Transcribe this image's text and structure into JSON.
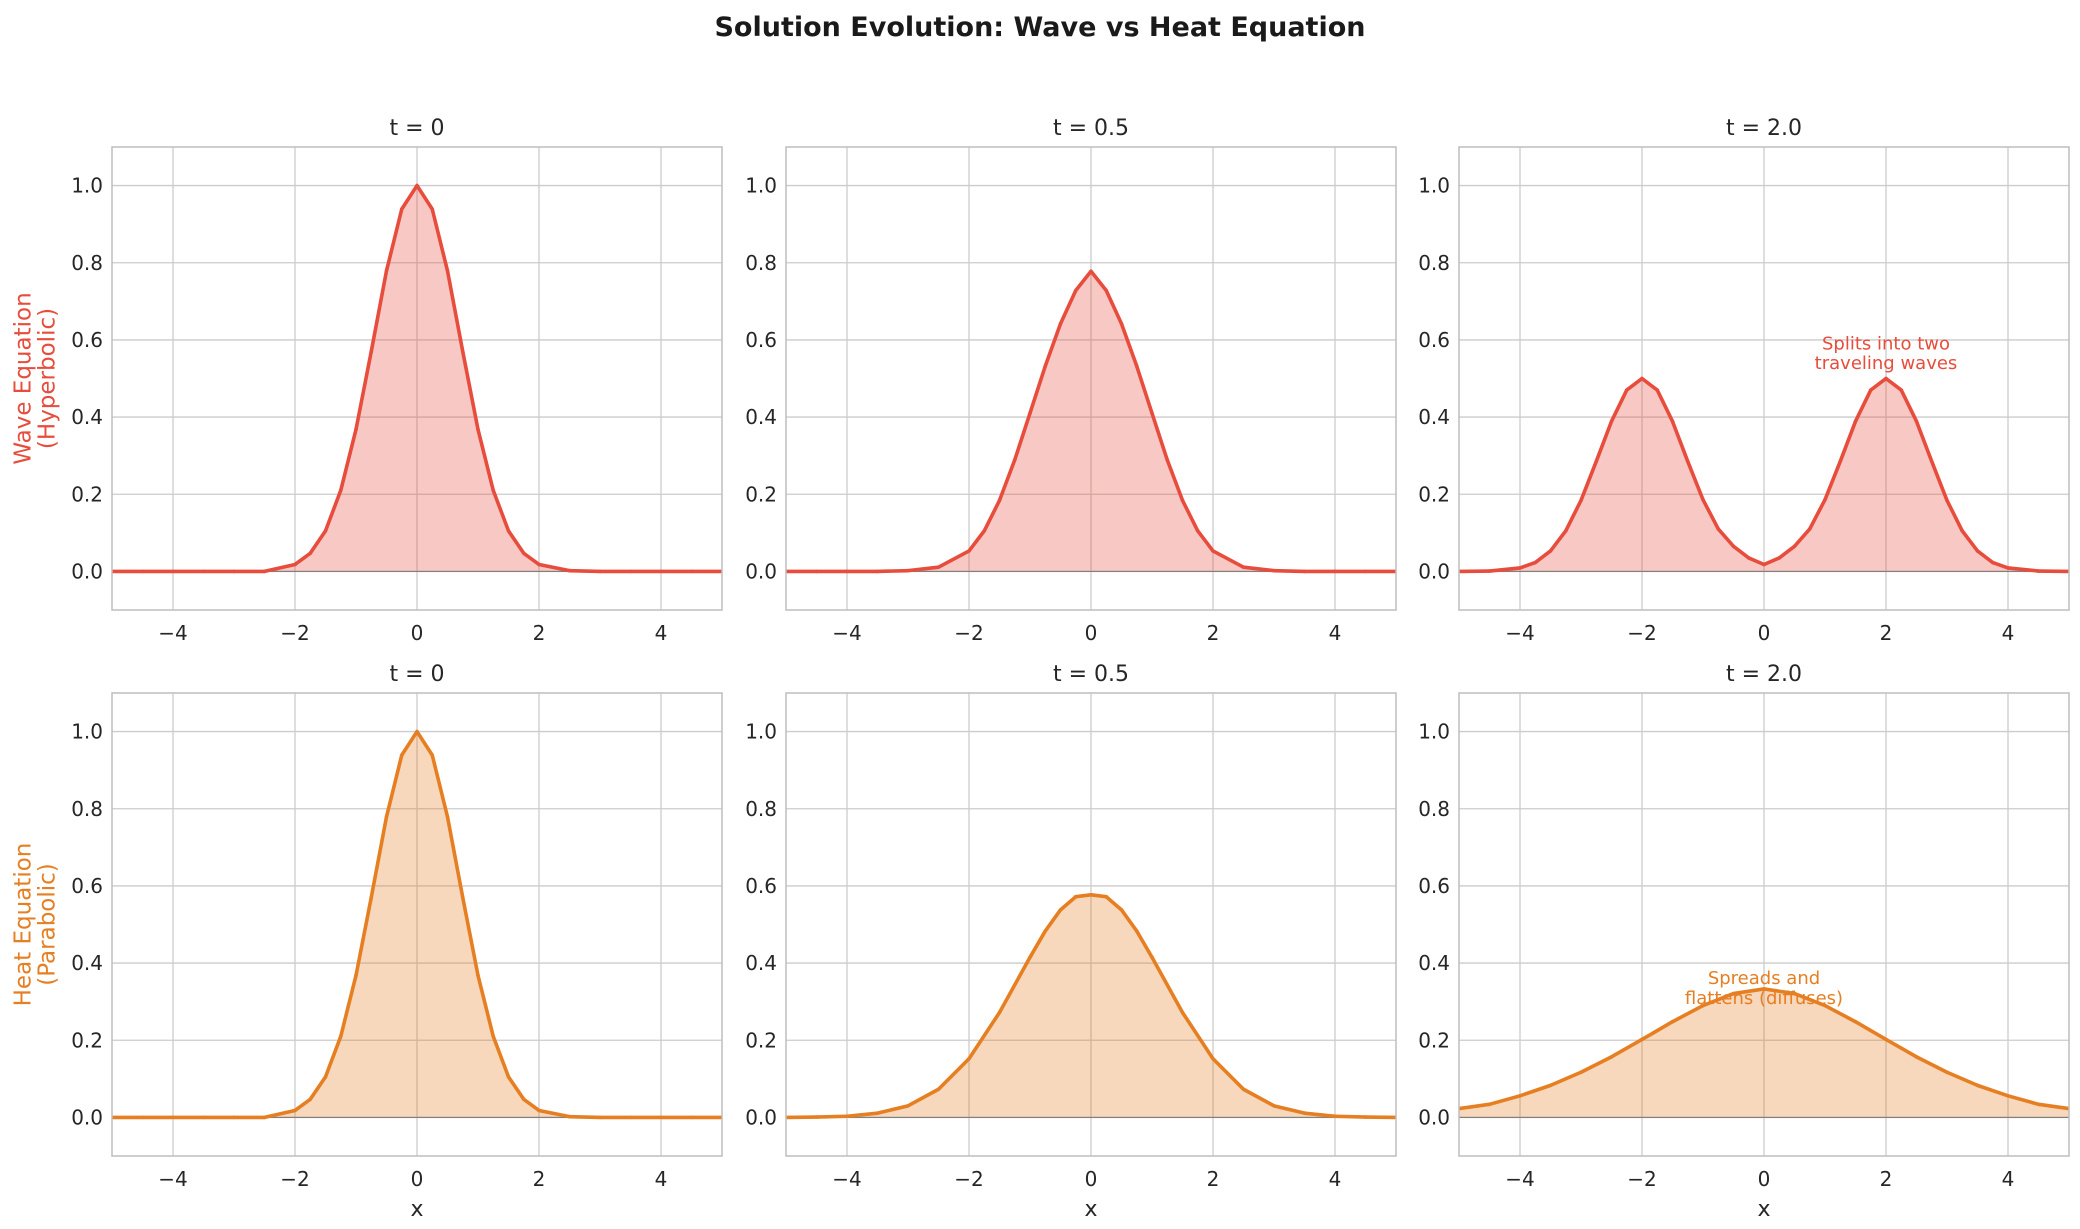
{
  "suptitle": "Solution Evolution: Wave vs Heat Equation",
  "colors": {
    "wave": "#e74c3c",
    "heat": "#e67e22",
    "grid": "#cccccc",
    "spine": "#bdbdbd",
    "baseline": "#808080"
  },
  "chart_data": [
    {
      "type": "area",
      "row": 0,
      "col": 0,
      "title": "t = 0",
      "ylabel": [
        "Wave Equation",
        "(Hyperbolic)"
      ],
      "xlabel": "",
      "xlim": [
        -5,
        5
      ],
      "ylim": [
        -0.1,
        1.1
      ],
      "xticks": [
        -4,
        -2,
        0,
        2,
        4
      ],
      "yticks": [
        0.0,
        0.2,
        0.4,
        0.6,
        0.8,
        1.0
      ],
      "color": "wave",
      "x": [
        -5.0,
        -4.5,
        -4.0,
        -3.5,
        -3.0,
        -2.5,
        -2.0,
        -1.75,
        -1.5,
        -1.25,
        -1.0,
        -0.75,
        -0.5,
        -0.25,
        0.0,
        0.25,
        0.5,
        0.75,
        1.0,
        1.25,
        1.5,
        1.75,
        2.0,
        2.5,
        3.0,
        3.5,
        4.0,
        4.5,
        5.0
      ],
      "y": [
        0.0,
        0.0,
        0.0,
        0.0,
        0.0,
        0.0,
        0.018,
        0.047,
        0.105,
        0.21,
        0.368,
        0.57,
        0.779,
        0.939,
        1.0,
        0.939,
        0.779,
        0.57,
        0.368,
        0.21,
        0.105,
        0.047,
        0.018,
        0.002,
        0.0,
        0.0,
        0.0,
        0.0,
        0.0
      ],
      "annotation": null
    },
    {
      "type": "area",
      "row": 0,
      "col": 1,
      "title": "t = 0.5",
      "ylabel": null,
      "xlabel": "",
      "xlim": [
        -5,
        5
      ],
      "ylim": [
        -0.1,
        1.1
      ],
      "xticks": [
        -4,
        -2,
        0,
        2,
        4
      ],
      "yticks": [
        0.0,
        0.2,
        0.4,
        0.6,
        0.8,
        1.0
      ],
      "color": "wave",
      "x": [
        -5.0,
        -4.5,
        -4.0,
        -3.5,
        -3.0,
        -2.5,
        -2.0,
        -1.75,
        -1.5,
        -1.25,
        -1.0,
        -0.75,
        -0.5,
        -0.25,
        0.0,
        0.25,
        0.5,
        0.75,
        1.0,
        1.25,
        1.5,
        1.75,
        2.0,
        2.5,
        3.0,
        3.5,
        4.0,
        4.5,
        5.0
      ],
      "y": [
        0.0,
        0.0,
        0.0,
        0.0,
        0.002,
        0.011,
        0.053,
        0.105,
        0.184,
        0.289,
        0.41,
        0.532,
        0.642,
        0.728,
        0.778,
        0.728,
        0.642,
        0.532,
        0.41,
        0.289,
        0.184,
        0.105,
        0.053,
        0.011,
        0.002,
        0.0,
        0.0,
        0.0,
        0.0
      ],
      "annotation": null
    },
    {
      "type": "area",
      "row": 0,
      "col": 2,
      "title": "t = 2.0",
      "ylabel": null,
      "xlabel": "",
      "xlim": [
        -5,
        5
      ],
      "ylim": [
        -0.1,
        1.1
      ],
      "xticks": [
        -4,
        -2,
        0,
        2,
        4
      ],
      "yticks": [
        0.0,
        0.2,
        0.4,
        0.6,
        0.8,
        1.0
      ],
      "color": "wave",
      "x": [
        -5.0,
        -4.5,
        -4.0,
        -3.75,
        -3.5,
        -3.25,
        -3.0,
        -2.75,
        -2.5,
        -2.25,
        -2.0,
        -1.75,
        -1.5,
        -1.25,
        -1.0,
        -0.75,
        -0.5,
        -0.25,
        0.0,
        0.25,
        0.5,
        0.75,
        1.0,
        1.25,
        1.5,
        1.75,
        2.0,
        2.25,
        2.5,
        2.75,
        3.0,
        3.25,
        3.5,
        3.75,
        4.0,
        4.5,
        5.0
      ],
      "y": [
        0.0,
        0.001,
        0.009,
        0.023,
        0.053,
        0.105,
        0.184,
        0.285,
        0.389,
        0.47,
        0.5,
        0.47,
        0.389,
        0.285,
        0.186,
        0.11,
        0.065,
        0.035,
        0.018,
        0.035,
        0.065,
        0.11,
        0.186,
        0.285,
        0.389,
        0.47,
        0.5,
        0.47,
        0.389,
        0.285,
        0.184,
        0.105,
        0.053,
        0.023,
        0.009,
        0.001,
        0.0
      ],
      "annotation": {
        "lines": [
          "Splits into two",
          "traveling waves"
        ],
        "x": 2.0,
        "y": 0.55
      }
    },
    {
      "type": "area",
      "row": 1,
      "col": 0,
      "title": "t = 0",
      "ylabel": [
        "Heat Equation",
        "(Parabolic)"
      ],
      "xlabel": "x",
      "xlim": [
        -5,
        5
      ],
      "ylim": [
        -0.1,
        1.1
      ],
      "xticks": [
        -4,
        -2,
        0,
        2,
        4
      ],
      "yticks": [
        0.0,
        0.2,
        0.4,
        0.6,
        0.8,
        1.0
      ],
      "color": "heat",
      "x": [
        -5.0,
        -4.5,
        -4.0,
        -3.5,
        -3.0,
        -2.5,
        -2.0,
        -1.75,
        -1.5,
        -1.25,
        -1.0,
        -0.75,
        -0.5,
        -0.25,
        0.0,
        0.25,
        0.5,
        0.75,
        1.0,
        1.25,
        1.5,
        1.75,
        2.0,
        2.5,
        3.0,
        3.5,
        4.0,
        4.5,
        5.0
      ],
      "y": [
        0.0,
        0.0,
        0.0,
        0.0,
        0.0,
        0.0,
        0.018,
        0.047,
        0.105,
        0.21,
        0.368,
        0.57,
        0.779,
        0.939,
        1.0,
        0.939,
        0.779,
        0.57,
        0.368,
        0.21,
        0.105,
        0.047,
        0.018,
        0.002,
        0.0,
        0.0,
        0.0,
        0.0,
        0.0
      ],
      "annotation": null
    },
    {
      "type": "area",
      "row": 1,
      "col": 1,
      "title": "t = 0.5",
      "ylabel": null,
      "xlabel": "x",
      "xlim": [
        -5,
        5
      ],
      "ylim": [
        -0.1,
        1.1
      ],
      "xticks": [
        -4,
        -2,
        0,
        2,
        4
      ],
      "yticks": [
        0.0,
        0.2,
        0.4,
        0.6,
        0.8,
        1.0
      ],
      "color": "heat",
      "x": [
        -5.0,
        -4.5,
        -4.0,
        -3.5,
        -3.0,
        -2.5,
        -2.0,
        -1.5,
        -1.0,
        -0.75,
        -0.5,
        -0.25,
        0.0,
        0.25,
        0.5,
        0.75,
        1.0,
        1.5,
        2.0,
        2.5,
        3.0,
        3.5,
        4.0,
        4.5,
        5.0
      ],
      "y": [
        0.0,
        0.001,
        0.003,
        0.011,
        0.03,
        0.073,
        0.152,
        0.272,
        0.415,
        0.483,
        0.538,
        0.572,
        0.577,
        0.572,
        0.538,
        0.483,
        0.415,
        0.272,
        0.152,
        0.073,
        0.03,
        0.011,
        0.003,
        0.001,
        0.0
      ],
      "annotation": null
    },
    {
      "type": "area",
      "row": 1,
      "col": 2,
      "title": "t = 2.0",
      "ylabel": null,
      "xlabel": "x",
      "xlim": [
        -5,
        5
      ],
      "ylim": [
        -0.1,
        1.1
      ],
      "xticks": [
        -4,
        -2,
        0,
        2,
        4
      ],
      "yticks": [
        0.0,
        0.2,
        0.4,
        0.6,
        0.8,
        1.0
      ],
      "color": "heat",
      "x": [
        -5.0,
        -4.5,
        -4.0,
        -3.5,
        -3.0,
        -2.5,
        -2.0,
        -1.5,
        -1.0,
        -0.5,
        0.0,
        0.5,
        1.0,
        1.5,
        2.0,
        2.5,
        3.0,
        3.5,
        4.0,
        4.5,
        5.0
      ],
      "y": [
        0.023,
        0.034,
        0.056,
        0.083,
        0.117,
        0.157,
        0.202,
        0.248,
        0.29,
        0.321,
        0.333,
        0.321,
        0.29,
        0.248,
        0.202,
        0.157,
        0.117,
        0.083,
        0.056,
        0.034,
        0.023
      ],
      "annotation": {
        "lines": [
          "Spreads and",
          "flattens (diffuses)"
        ],
        "x": 0.0,
        "y": 0.32
      }
    }
  ]
}
